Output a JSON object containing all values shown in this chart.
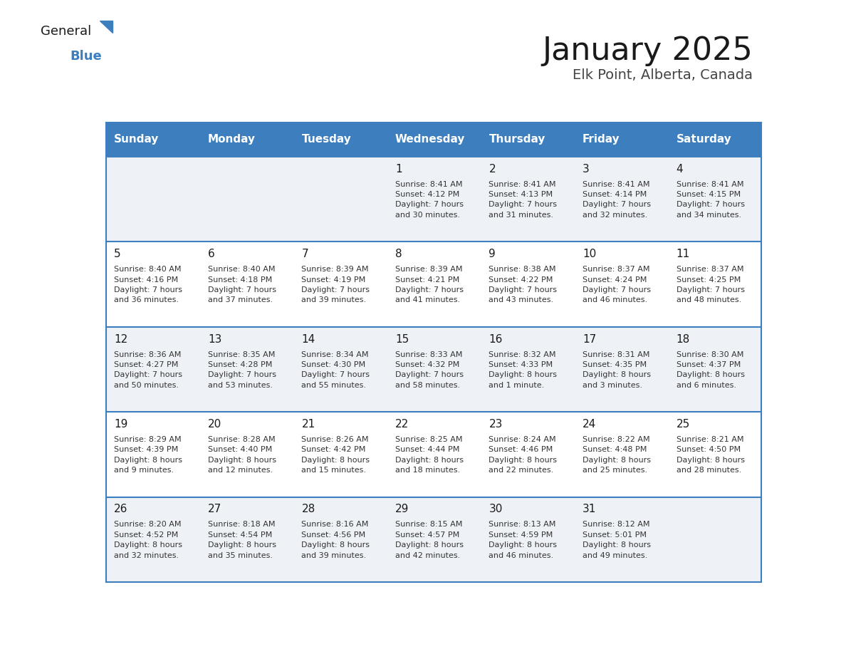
{
  "title": "January 2025",
  "subtitle": "Elk Point, Alberta, Canada",
  "header_bg": "#3d7ebf",
  "header_text": "#ffffff",
  "row_bg_even": "#eef2f7",
  "row_bg_odd": "#ffffff",
  "border_color": "#3d7ebf",
  "days_of_week": [
    "Sunday",
    "Monday",
    "Tuesday",
    "Wednesday",
    "Thursday",
    "Friday",
    "Saturday"
  ],
  "weeks": [
    [
      {
        "day": "",
        "info": ""
      },
      {
        "day": "",
        "info": ""
      },
      {
        "day": "",
        "info": ""
      },
      {
        "day": "1",
        "info": "Sunrise: 8:41 AM\nSunset: 4:12 PM\nDaylight: 7 hours\nand 30 minutes."
      },
      {
        "day": "2",
        "info": "Sunrise: 8:41 AM\nSunset: 4:13 PM\nDaylight: 7 hours\nand 31 minutes."
      },
      {
        "day": "3",
        "info": "Sunrise: 8:41 AM\nSunset: 4:14 PM\nDaylight: 7 hours\nand 32 minutes."
      },
      {
        "day": "4",
        "info": "Sunrise: 8:41 AM\nSunset: 4:15 PM\nDaylight: 7 hours\nand 34 minutes."
      }
    ],
    [
      {
        "day": "5",
        "info": "Sunrise: 8:40 AM\nSunset: 4:16 PM\nDaylight: 7 hours\nand 36 minutes."
      },
      {
        "day": "6",
        "info": "Sunrise: 8:40 AM\nSunset: 4:18 PM\nDaylight: 7 hours\nand 37 minutes."
      },
      {
        "day": "7",
        "info": "Sunrise: 8:39 AM\nSunset: 4:19 PM\nDaylight: 7 hours\nand 39 minutes."
      },
      {
        "day": "8",
        "info": "Sunrise: 8:39 AM\nSunset: 4:21 PM\nDaylight: 7 hours\nand 41 minutes."
      },
      {
        "day": "9",
        "info": "Sunrise: 8:38 AM\nSunset: 4:22 PM\nDaylight: 7 hours\nand 43 minutes."
      },
      {
        "day": "10",
        "info": "Sunrise: 8:37 AM\nSunset: 4:24 PM\nDaylight: 7 hours\nand 46 minutes."
      },
      {
        "day": "11",
        "info": "Sunrise: 8:37 AM\nSunset: 4:25 PM\nDaylight: 7 hours\nand 48 minutes."
      }
    ],
    [
      {
        "day": "12",
        "info": "Sunrise: 8:36 AM\nSunset: 4:27 PM\nDaylight: 7 hours\nand 50 minutes."
      },
      {
        "day": "13",
        "info": "Sunrise: 8:35 AM\nSunset: 4:28 PM\nDaylight: 7 hours\nand 53 minutes."
      },
      {
        "day": "14",
        "info": "Sunrise: 8:34 AM\nSunset: 4:30 PM\nDaylight: 7 hours\nand 55 minutes."
      },
      {
        "day": "15",
        "info": "Sunrise: 8:33 AM\nSunset: 4:32 PM\nDaylight: 7 hours\nand 58 minutes."
      },
      {
        "day": "16",
        "info": "Sunrise: 8:32 AM\nSunset: 4:33 PM\nDaylight: 8 hours\nand 1 minute."
      },
      {
        "day": "17",
        "info": "Sunrise: 8:31 AM\nSunset: 4:35 PM\nDaylight: 8 hours\nand 3 minutes."
      },
      {
        "day": "18",
        "info": "Sunrise: 8:30 AM\nSunset: 4:37 PM\nDaylight: 8 hours\nand 6 minutes."
      }
    ],
    [
      {
        "day": "19",
        "info": "Sunrise: 8:29 AM\nSunset: 4:39 PM\nDaylight: 8 hours\nand 9 minutes."
      },
      {
        "day": "20",
        "info": "Sunrise: 8:28 AM\nSunset: 4:40 PM\nDaylight: 8 hours\nand 12 minutes."
      },
      {
        "day": "21",
        "info": "Sunrise: 8:26 AM\nSunset: 4:42 PM\nDaylight: 8 hours\nand 15 minutes."
      },
      {
        "day": "22",
        "info": "Sunrise: 8:25 AM\nSunset: 4:44 PM\nDaylight: 8 hours\nand 18 minutes."
      },
      {
        "day": "23",
        "info": "Sunrise: 8:24 AM\nSunset: 4:46 PM\nDaylight: 8 hours\nand 22 minutes."
      },
      {
        "day": "24",
        "info": "Sunrise: 8:22 AM\nSunset: 4:48 PM\nDaylight: 8 hours\nand 25 minutes."
      },
      {
        "day": "25",
        "info": "Sunrise: 8:21 AM\nSunset: 4:50 PM\nDaylight: 8 hours\nand 28 minutes."
      }
    ],
    [
      {
        "day": "26",
        "info": "Sunrise: 8:20 AM\nSunset: 4:52 PM\nDaylight: 8 hours\nand 32 minutes."
      },
      {
        "day": "27",
        "info": "Sunrise: 8:18 AM\nSunset: 4:54 PM\nDaylight: 8 hours\nand 35 minutes."
      },
      {
        "day": "28",
        "info": "Sunrise: 8:16 AM\nSunset: 4:56 PM\nDaylight: 8 hours\nand 39 minutes."
      },
      {
        "day": "29",
        "info": "Sunrise: 8:15 AM\nSunset: 4:57 PM\nDaylight: 8 hours\nand 42 minutes."
      },
      {
        "day": "30",
        "info": "Sunrise: 8:13 AM\nSunset: 4:59 PM\nDaylight: 8 hours\nand 46 minutes."
      },
      {
        "day": "31",
        "info": "Sunrise: 8:12 AM\nSunset: 5:01 PM\nDaylight: 8 hours\nand 49 minutes."
      },
      {
        "day": "",
        "info": ""
      }
    ]
  ],
  "logo_general_color": "#1a1a1a",
  "logo_blue_color": "#3d7ebf",
  "logo_triangle_color": "#3d7ebf",
  "title_color": "#1a1a1a",
  "subtitle_color": "#444444",
  "day_number_color": "#1a1a1a",
  "cell_text_color": "#333333",
  "title_fontsize": 32,
  "subtitle_fontsize": 14,
  "header_fontsize": 11,
  "day_number_fontsize": 11,
  "cell_text_fontsize": 8
}
